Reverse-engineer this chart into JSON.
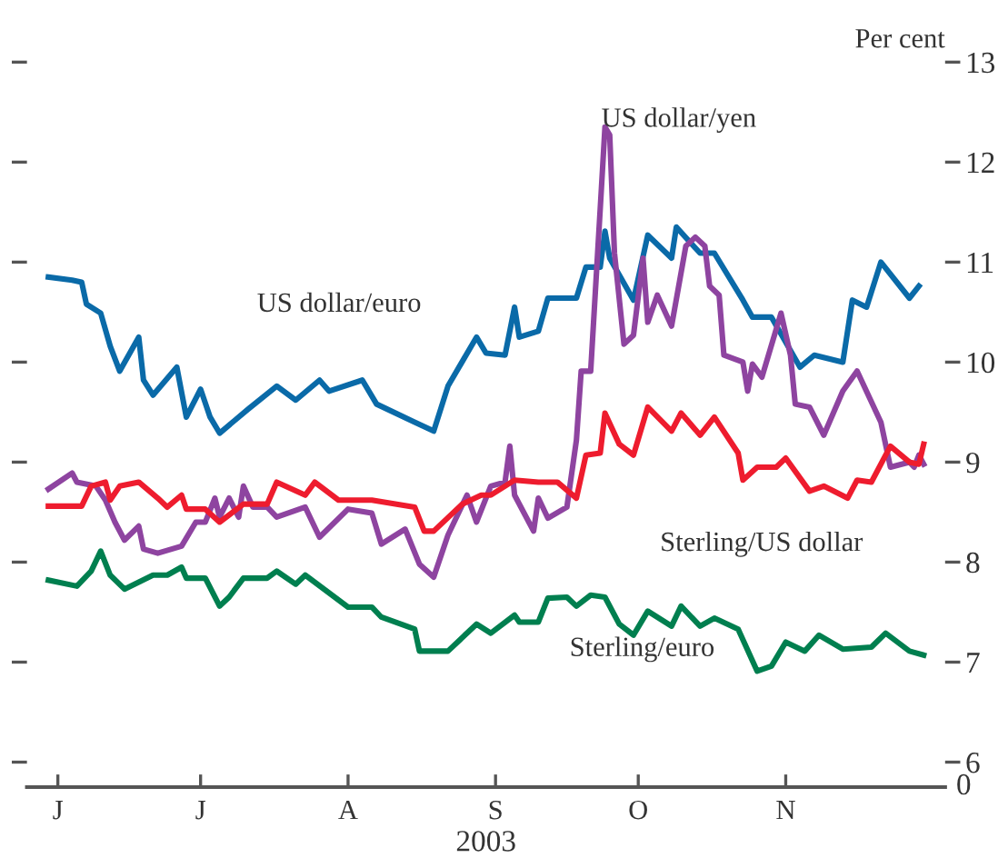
{
  "chart_data": {
    "type": "line",
    "xlabel": "2003",
    "ylabel": "Per cent",
    "grid": false,
    "legend": false,
    "categories": [
      null,
      null,
      "J",
      null,
      null,
      null,
      null,
      null,
      null,
      null,
      null,
      null,
      null,
      null,
      null,
      null,
      null,
      null,
      null,
      null,
      null,
      null,
      null,
      null,
      null,
      null,
      null,
      null,
      null,
      null,
      null,
      null,
      "J",
      null,
      null,
      null,
      null,
      null,
      null,
      null,
      null,
      null,
      null,
      null,
      null,
      null,
      null,
      null,
      null,
      null,
      null,
      null,
      null,
      null,
      null,
      null,
      null,
      null,
      null,
      null,
      null,
      null,
      null,
      "A",
      null,
      null,
      null,
      null,
      null,
      null,
      null,
      null,
      null,
      null,
      null,
      null,
      null,
      null,
      null,
      null,
      null,
      null,
      null,
      null,
      null,
      null,
      null,
      null,
      null,
      null,
      null,
      null,
      null,
      null,
      "S",
      null,
      null,
      null,
      null,
      null,
      null,
      null,
      null,
      null,
      null,
      null,
      null,
      null,
      null,
      null,
      null,
      null,
      null,
      null,
      null,
      null,
      null,
      null,
      null,
      null,
      null,
      null,
      null,
      null,
      "O",
      null,
      null,
      null,
      null,
      null,
      null,
      null,
      null,
      null,
      null,
      null,
      null,
      null,
      null,
      null,
      null,
      null,
      null,
      null,
      null,
      null,
      null,
      null,
      null,
      null,
      null,
      null,
      null,
      null,
      null,
      "N",
      null,
      null,
      null,
      null,
      null,
      null,
      null,
      null,
      null,
      null,
      null,
      null,
      null,
      null,
      null,
      null,
      null,
      null,
      null,
      null,
      null,
      null,
      null,
      null,
      null,
      null,
      null,
      null,
      null
    ],
    "ylim": [
      5.75,
      13
    ],
    "yticks": [
      6,
      7,
      8,
      9,
      10,
      11,
      12,
      13
    ],
    "annotations": [
      "0"
    ],
    "series": [
      {
        "name": "US dollar/euro",
        "color": "#0a6aa8",
        "values": [
          10.85,
          null,
          null,
          null,
          null,
          10.82,
          null,
          10.8,
          10.58,
          null,
          null,
          10.49,
          null,
          10.16,
          null,
          9.91,
          null,
          null,
          null,
          10.25,
          9.82,
          null,
          9.67,
          null,
          null,
          null,
          null,
          9.95,
          null,
          9.45,
          null,
          null,
          9.73,
          null,
          9.45,
          null,
          9.29,
          null,
          null,
          null,
          null,
          null,
          9.53,
          null,
          null,
          null,
          null,
          null,
          9.76,
          null,
          null,
          null,
          9.62,
          null,
          null,
          null,
          null,
          9.82,
          null,
          9.71,
          null,
          null,
          null,
          null,
          null,
          null,
          9.82,
          null,
          null,
          9.58,
          null,
          null,
          null,
          null,
          null,
          null,
          null,
          9.4,
          null,
          null,
          null,
          9.31,
          null,
          null,
          9.76,
          null,
          null,
          null,
          null,
          null,
          10.25,
          null,
          10.09,
          null,
          null,
          null,
          10.07,
          null,
          10.55,
          10.25,
          null,
          null,
          null,
          10.31,
          null,
          10.64,
          null,
          null,
          null,
          null,
          null,
          10.64,
          null,
          10.95,
          null,
          null,
          10.95,
          11.31,
          11.04,
          null,
          null,
          null,
          null,
          10.62,
          null,
          null,
          11.27,
          null,
          null,
          null,
          null,
          11.04,
          11.35,
          null,
          null,
          null,
          null,
          11.09,
          null,
          null,
          11.09,
          null,
          null,
          null,
          null,
          null,
          10.62,
          null,
          10.45,
          null,
          null,
          null,
          10.45,
          null,
          null,
          null,
          null,
          null,
          9.95,
          null,
          null,
          10.07,
          null,
          null,
          null,
          null,
          null,
          10.0,
          null,
          10.62,
          null,
          null,
          10.55,
          null,
          null,
          11.0,
          null,
          null,
          null,
          null,
          null,
          10.64,
          null,
          10.76,
          null
        ]
      },
      {
        "name": "US dollar/yen",
        "color": "#8e44a0",
        "values": [
          8.73,
          null,
          null,
          null,
          null,
          8.89,
          8.8,
          null,
          null,
          null,
          8.76,
          null,
          8.62,
          null,
          8.4,
          null,
          8.22,
          null,
          null,
          8.36,
          8.13,
          null,
          null,
          8.09,
          null,
          null,
          null,
          null,
          8.16,
          null,
          null,
          8.4,
          null,
          8.4,
          null,
          8.64,
          8.45,
          null,
          8.64,
          null,
          8.45,
          8.76,
          null,
          8.55,
          null,
          null,
          8.55,
          null,
          8.45,
          null,
          null,
          null,
          null,
          null,
          8.55,
          null,
          null,
          8.25,
          null,
          null,
          null,
          null,
          null,
          8.53,
          null,
          null,
          null,
          null,
          8.49,
          null,
          8.18,
          null,
          null,
          null,
          null,
          8.33,
          null,
          null,
          7.98,
          null,
          null,
          7.85,
          null,
          null,
          8.27,
          null,
          null,
          null,
          8.67,
          null,
          8.4,
          null,
          null,
          8.76,
          null,
          null,
          8.8,
          9.16,
          8.67,
          null,
          null,
          null,
          8.31,
          8.64,
          null,
          8.44,
          null,
          null,
          null,
          8.55,
          null,
          9.22,
          9.91,
          null,
          9.91,
          null,
          11.53,
          12.35,
          12.27,
          11.09,
          null,
          10.18,
          null,
          10.27,
          null,
          11.04,
          10.4,
          null,
          10.67,
          null,
          null,
          10.36,
          null,
          null,
          11.16,
          null,
          11.25,
          null,
          11.16,
          10.76,
          null,
          10.67,
          10.07,
          null,
          null,
          null,
          10.0,
          9.71,
          9.98,
          null,
          9.85,
          null,
          null,
          null,
          10.49,
          null,
          10.07,
          9.58,
          null,
          null,
          9.55,
          null,
          null,
          9.27,
          null,
          null,
          null,
          9.71,
          null,
          null,
          9.91,
          null,
          null,
          null,
          null,
          9.4,
          null,
          8.95,
          null,
          null,
          null,
          9.0,
          8.95,
          9.07,
          8.98
        ]
      },
      {
        "name": "Sterling/US dollar",
        "color": "#ee1c2e",
        "values": [
          8.56,
          null,
          null,
          null,
          null,
          null,
          null,
          8.56,
          null,
          8.76,
          null,
          null,
          8.8,
          8.62,
          null,
          8.76,
          null,
          null,
          null,
          8.8,
          null,
          null,
          null,
          8.64,
          null,
          8.55,
          null,
          null,
          8.67,
          8.53,
          null,
          null,
          null,
          8.53,
          null,
          null,
          8.4,
          null,
          null,
          null,
          null,
          8.58,
          null,
          null,
          null,
          null,
          8.58,
          null,
          8.8,
          null,
          null,
          null,
          null,
          null,
          8.67,
          null,
          8.8,
          null,
          null,
          null,
          null,
          8.62,
          null,
          null,
          null,
          null,
          null,
          null,
          8.62,
          null,
          null,
          null,
          null,
          null,
          null,
          null,
          null,
          8.55,
          null,
          8.31,
          null,
          8.31,
          null,
          null,
          null,
          null,
          null,
          8.58,
          null,
          null,
          null,
          8.67,
          null,
          8.67,
          null,
          null,
          null,
          null,
          8.82,
          null,
          null,
          null,
          null,
          8.8,
          null,
          null,
          null,
          8.8,
          null,
          null,
          null,
          8.64,
          null,
          9.07,
          null,
          null,
          9.09,
          9.49,
          null,
          null,
          9.18,
          null,
          null,
          9.07,
          null,
          null,
          9.55,
          null,
          null,
          null,
          null,
          9.31,
          null,
          9.49,
          null,
          null,
          null,
          9.27,
          null,
          null,
          9.45,
          null,
          null,
          null,
          null,
          9.09,
          8.82,
          null,
          null,
          8.95,
          null,
          null,
          null,
          8.95,
          null,
          9.04,
          null,
          null,
          null,
          null,
          8.71,
          null,
          null,
          8.76,
          null,
          null,
          null,
          null,
          8.64,
          null,
          8.82,
          null,
          null,
          8.8,
          null,
          null,
          null,
          9.16,
          null,
          null,
          null,
          9.0,
          null,
          8.98,
          9.18
        ]
      },
      {
        "name": "Sterling/euro",
        "color": "#007f4f",
        "values": [
          7.82,
          null,
          null,
          null,
          null,
          null,
          7.76,
          null,
          null,
          7.91,
          null,
          8.11,
          null,
          7.87,
          null,
          null,
          7.73,
          null,
          null,
          null,
          null,
          null,
          7.87,
          null,
          null,
          7.87,
          null,
          null,
          7.95,
          7.84,
          null,
          null,
          null,
          7.84,
          null,
          null,
          7.56,
          null,
          7.65,
          null,
          null,
          7.84,
          null,
          null,
          null,
          null,
          7.84,
          null,
          7.91,
          null,
          null,
          null,
          7.78,
          null,
          7.87,
          null,
          null,
          null,
          null,
          null,
          null,
          null,
          null,
          7.55,
          null,
          null,
          null,
          null,
          7.55,
          null,
          7.45,
          null,
          null,
          null,
          null,
          null,
          null,
          7.33,
          7.11,
          null,
          null,
          null,
          null,
          null,
          7.11,
          null,
          null,
          null,
          null,
          null,
          7.38,
          null,
          null,
          7.29,
          null,
          null,
          null,
          null,
          7.47,
          7.4,
          null,
          null,
          null,
          7.4,
          null,
          7.64,
          null,
          null,
          null,
          7.65,
          null,
          7.56,
          null,
          null,
          7.67,
          null,
          null,
          7.65,
          null,
          null,
          7.38,
          null,
          null,
          7.27,
          null,
          null,
          7.51,
          null,
          null,
          null,
          null,
          7.36,
          null,
          7.56,
          null,
          null,
          null,
          7.36,
          null,
          null,
          7.44,
          null,
          null,
          null,
          null,
          7.33,
          null,
          null,
          null,
          6.91,
          null,
          null,
          6.96,
          null,
          null,
          7.2,
          null,
          null,
          null,
          7.11,
          null,
          null,
          7.27,
          null,
          null,
          null,
          null,
          7.13,
          null,
          null,
          null,
          null,
          null,
          7.15,
          null,
          null,
          7.29,
          null,
          null,
          null,
          null,
          7.11,
          null,
          null,
          7.07
        ]
      }
    ]
  }
}
